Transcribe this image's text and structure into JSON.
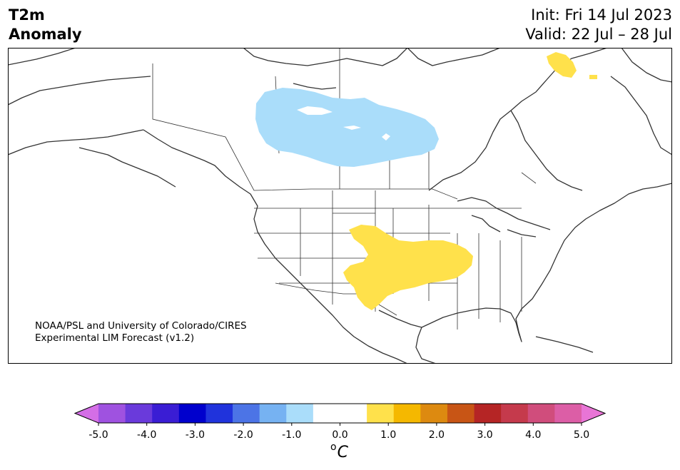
{
  "header": {
    "variable": "T2m",
    "field": "Anomaly",
    "init": "Init: Fri 14 Jul 2023",
    "valid": "Valid: 22 Jul – 28 Jul"
  },
  "map": {
    "region": "North America",
    "credit_line1": "NOAA/PSL and University of Colorado/CIRES",
    "credit_line2": "Experimental LIM Forecast (v1.2)",
    "anomalies": [
      {
        "area": "Central Canada / Northern Plains",
        "category": "-1.0 to -0.5",
        "color": "#aaddfa"
      },
      {
        "area": "Southern Plains / Southwest",
        "category": "0.5 to 1.0",
        "color": "#ffe14b"
      },
      {
        "area": "Baffin Island / Greenland",
        "category": "0.5 to 1.0",
        "color": "#ffe14b"
      }
    ]
  },
  "colorbar": {
    "colors": [
      "#d46ee6",
      "#9f52e0",
      "#6a3adb",
      "#3a1dd4",
      "#0000cd",
      "#2033dc",
      "#4c74e6",
      "#76b2f2",
      "#aaddfa",
      "#ffffff",
      "#ffffff",
      "#ffe14b",
      "#f5b800",
      "#dd8a10",
      "#c85515",
      "#b52525",
      "#c53a4c",
      "#d04d7c",
      "#dc5ea6",
      "#e875d6"
    ],
    "ticks": [
      "-5.0",
      "-4.0",
      "-3.0",
      "-2.0",
      "-1.0",
      "0.0",
      "1.0",
      "2.0",
      "3.0",
      "4.0",
      "5.0"
    ],
    "unit": "C",
    "unit_sup": "o"
  }
}
